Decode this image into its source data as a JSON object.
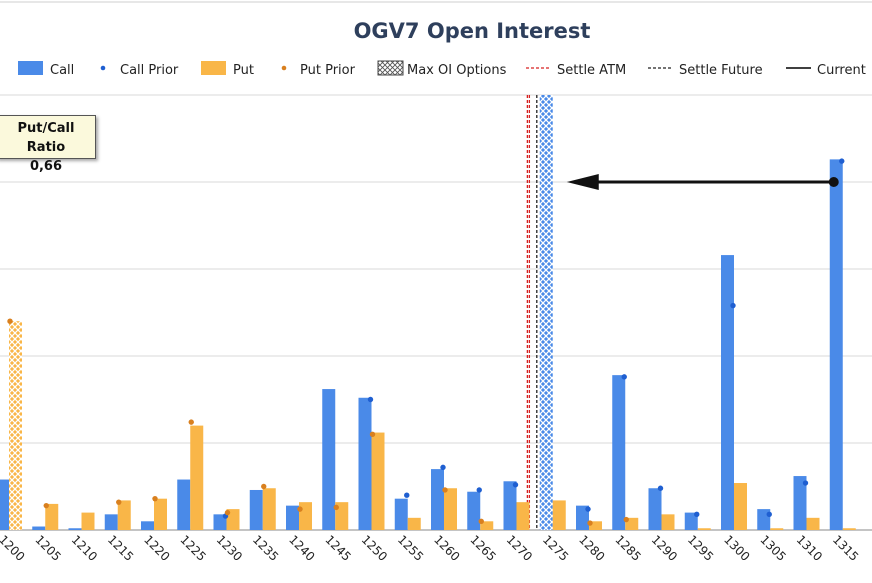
{
  "chart_data": {
    "type": "bar",
    "title": "OGV7 Open Interest",
    "categories": [
      "1200",
      "1205",
      "1210",
      "1215",
      "1220",
      "1225",
      "1230",
      "1235",
      "1240",
      "1245",
      "1250",
      "1255",
      "1260",
      "1265",
      "1270",
      "1275",
      "1280",
      "1285",
      "1290",
      "1295",
      "1300",
      "1305",
      "1310",
      "1315"
    ],
    "series": [
      {
        "name": "Call",
        "values": [
          29,
          2,
          1,
          9,
          5,
          29,
          9,
          23,
          14,
          81,
          76,
          18,
          35,
          22,
          28,
          249,
          14,
          89,
          24,
          10,
          158,
          12,
          31,
          213
        ]
      },
      {
        "name": "Call Prior",
        "values": [
          null,
          null,
          null,
          null,
          null,
          null,
          8,
          null,
          null,
          null,
          75,
          20,
          36,
          23,
          26,
          null,
          12,
          88,
          24,
          9,
          129,
          9,
          27,
          212
        ]
      },
      {
        "name": "Put",
        "values": [
          120,
          15,
          10,
          17,
          18,
          60,
          12,
          24,
          16,
          16,
          56,
          7,
          24,
          5,
          16,
          17,
          5,
          7,
          9,
          1,
          27,
          1,
          7,
          1
        ]
      },
      {
        "name": "Put Prior",
        "values": [
          120,
          14,
          null,
          16,
          18,
          62,
          10,
          25,
          12,
          13,
          55,
          null,
          23,
          5,
          null,
          null,
          4,
          6,
          null,
          null,
          null,
          null,
          null,
          null
        ]
      }
    ],
    "max_oi_options": {
      "call_strike": "1275",
      "put_strike": "1200"
    },
    "reference_lines": {
      "settle_atm": 1271.5,
      "settle_future": 1272.8,
      "current": 1273.3
    },
    "legend": [
      "Call",
      "Call Prior",
      "Put",
      "Put Prior",
      "Max OI Options",
      "Settle ATM",
      "Settle Future",
      "Current"
    ],
    "legend_position": "top",
    "ylim": [
      0,
      250
    ],
    "grid": true,
    "annotation": {
      "title": "Put/Call Ratio",
      "value": "0,66"
    },
    "colors": {
      "call": "#4a8ae8",
      "call_prior": "#1f5fd1",
      "put": "#f9b648",
      "put_prior": "#d9801f",
      "settle_atm": "#d62020",
      "settle_future": "#222222",
      "current": "#000000",
      "grid": "#d9d9d9"
    }
  }
}
